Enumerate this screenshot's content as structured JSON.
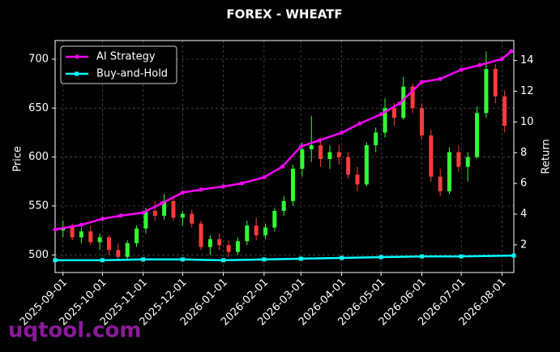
{
  "chart_data": {
    "type": "candlestick",
    "title": "FOREX - WHEATF",
    "y_label": "Price",
    "y2_label": "Return",
    "watermark": "uqtool.com",
    "up_color": "#33ff33",
    "down_color": "#ff3b3b",
    "grid": true,
    "legend": "upper left",
    "xlim": [
      "2025-08-26",
      "2026-08-10"
    ],
    "xticks": [
      "2025-09-01",
      "2025-10-01",
      "2025-11-01",
      "2025-12-01",
      "2026-01-01",
      "2026-02-01",
      "2026-03-01",
      "2026-04-01",
      "2026-05-01",
      "2026-06-01",
      "2026-07-01",
      "2026-08-01"
    ],
    "ylim": [
      482,
      719
    ],
    "yticks": [
      500,
      550,
      600,
      650,
      700
    ],
    "y2lim": [
      0.2,
      15.3
    ],
    "y2ticks": [
      2,
      4,
      6,
      8,
      10,
      12,
      14
    ],
    "x": [
      "2025-09-01",
      "2025-09-08",
      "2025-09-15",
      "2025-09-22",
      "2025-09-29",
      "2025-10-06",
      "2025-10-13",
      "2025-10-20",
      "2025-10-27",
      "2025-11-03",
      "2025-11-10",
      "2025-11-17",
      "2025-11-24",
      "2025-12-01",
      "2025-12-08",
      "2025-12-15",
      "2025-12-22",
      "2025-12-29",
      "2026-01-05",
      "2026-01-12",
      "2026-01-19",
      "2026-01-26",
      "2026-02-02",
      "2026-02-09",
      "2026-02-16",
      "2026-02-23",
      "2026-03-02",
      "2026-03-09",
      "2026-03-16",
      "2026-03-23",
      "2026-03-30",
      "2026-04-06",
      "2026-04-13",
      "2026-04-20",
      "2026-04-27",
      "2026-05-04",
      "2026-05-11",
      "2026-05-18",
      "2026-05-25",
      "2026-06-01",
      "2026-06-08",
      "2026-06-15",
      "2026-06-22",
      "2026-06-29",
      "2026-07-06",
      "2026-07-13",
      "2026-07-20",
      "2026-07-27",
      "2026-08-03"
    ],
    "open": [
      525,
      528,
      518,
      524,
      513,
      518,
      505,
      498,
      512,
      527,
      545,
      540,
      555,
      538,
      542,
      532,
      508,
      516,
      510,
      503,
      514,
      530,
      520,
      528,
      545,
      555,
      588,
      608,
      612,
      598,
      605,
      600,
      582,
      572,
      612,
      625,
      650,
      640,
      672,
      650,
      622,
      580,
      565,
      605,
      590,
      600,
      645,
      690,
      662
    ],
    "high": [
      535,
      532,
      528,
      530,
      522,
      520,
      512,
      515,
      530,
      548,
      555,
      562,
      558,
      545,
      546,
      535,
      520,
      522,
      515,
      518,
      535,
      538,
      532,
      548,
      560,
      592,
      615,
      642,
      620,
      612,
      612,
      605,
      590,
      615,
      630,
      660,
      655,
      682,
      675,
      655,
      628,
      588,
      610,
      612,
      605,
      652,
      708,
      695,
      668
    ],
    "low": [
      518,
      515,
      512,
      510,
      505,
      500,
      495,
      496,
      508,
      522,
      535,
      536,
      535,
      530,
      528,
      505,
      500,
      505,
      498,
      500,
      510,
      515,
      516,
      524,
      540,
      550,
      580,
      595,
      590,
      588,
      592,
      578,
      565,
      570,
      605,
      620,
      632,
      638,
      645,
      618,
      575,
      560,
      562,
      585,
      575,
      598,
      640,
      655,
      625
    ],
    "close": [
      528,
      518,
      524,
      513,
      518,
      505,
      498,
      512,
      527,
      545,
      540,
      555,
      538,
      542,
      532,
      508,
      516,
      510,
      503,
      514,
      530,
      520,
      528,
      545,
      555,
      588,
      608,
      612,
      598,
      605,
      600,
      582,
      572,
      612,
      625,
      650,
      640,
      672,
      650,
      622,
      580,
      565,
      605,
      590,
      600,
      645,
      690,
      662,
      632
    ],
    "lines": [
      {
        "name": "AI Strategy",
        "color": "#ff00ff",
        "marker": "circle",
        "axis": "y2",
        "x": [
          "2025-08-26",
          "2025-09-15",
          "2025-10-01",
          "2025-10-15",
          "2025-11-01",
          "2025-11-15",
          "2025-12-01",
          "2025-12-15",
          "2026-01-01",
          "2026-01-15",
          "2026-02-01",
          "2026-02-15",
          "2026-03-01",
          "2026-03-15",
          "2026-04-01",
          "2026-04-15",
          "2026-05-01",
          "2026-05-15",
          "2026-06-01",
          "2026-06-15",
          "2026-07-01",
          "2026-07-15",
          "2026-08-01",
          "2026-08-08"
        ],
        "values": [
          3.0,
          3.3,
          3.7,
          3.9,
          4.1,
          4.7,
          5.4,
          5.6,
          5.8,
          6.0,
          6.4,
          7.1,
          8.4,
          8.8,
          9.3,
          9.9,
          10.5,
          11.2,
          12.6,
          12.8,
          13.4,
          13.7,
          14.1,
          14.6
        ]
      },
      {
        "name": "Buy-and-Hold",
        "color": "#00ffff",
        "marker": "square",
        "axis": "y2",
        "x": [
          "2025-08-26",
          "2025-10-01",
          "2025-11-01",
          "2025-12-01",
          "2026-01-01",
          "2026-02-01",
          "2026-03-01",
          "2026-04-01",
          "2026-05-01",
          "2026-06-01",
          "2026-07-01",
          "2026-08-10"
        ],
        "values": [
          1.0,
          1.0,
          1.05,
          1.05,
          1.0,
          1.05,
          1.1,
          1.15,
          1.2,
          1.25,
          1.25,
          1.3
        ]
      }
    ]
  }
}
